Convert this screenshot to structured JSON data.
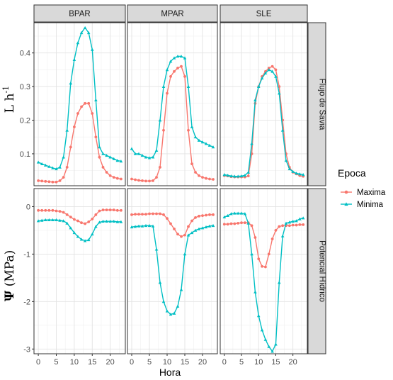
{
  "chart_data": {
    "type": "line",
    "facet_cols": [
      "BPAR",
      "MPAR",
      "SLE"
    ],
    "facet_rows": [
      "Flujo de Savia",
      "Potencial Hídrico"
    ],
    "xlabel": "Hora",
    "ylabel_top": {
      "main": "L h",
      "sup": "-1"
    },
    "ylabel_bottom": {
      "symbol": "Ψ",
      "rest": " (MPa)"
    },
    "x_ticks": [
      0,
      5,
      10,
      15,
      20
    ],
    "xlim": [
      -1.2,
      24.2
    ],
    "row_limits": [
      [
        0.005,
        0.49
      ],
      [
        -3.1,
        0.38
      ]
    ],
    "row_ticks": [
      [
        0.1,
        0.2,
        0.3,
        0.4
      ],
      [
        0,
        -1,
        -2,
        -3
      ]
    ],
    "legend_title": "Epoca",
    "series": [
      {
        "name": "Maxima",
        "color": "#F8766D",
        "marker": "circle"
      },
      {
        "name": "Minima",
        "color": "#00BFC4",
        "marker": "triangle"
      }
    ],
    "x": [
      0,
      1,
      2,
      3,
      4,
      5,
      6,
      7,
      8,
      9,
      10,
      11,
      12,
      13,
      14,
      15,
      16,
      17,
      18,
      19,
      20,
      21,
      22,
      23
    ],
    "panels": [
      {
        "row": 0,
        "col": 0,
        "Maxima": [
          0.02,
          0.019,
          0.018,
          0.017,
          0.016,
          0.016,
          0.02,
          0.03,
          0.06,
          0.12,
          0.18,
          0.22,
          0.24,
          0.25,
          0.25,
          0.22,
          0.15,
          0.09,
          0.06,
          0.045,
          0.035,
          0.03,
          0.027,
          0.025
        ],
        "Minima": [
          0.075,
          0.07,
          0.066,
          0.062,
          0.058,
          0.055,
          0.06,
          0.09,
          0.17,
          0.31,
          0.38,
          0.43,
          0.46,
          0.475,
          0.46,
          0.41,
          0.26,
          0.12,
          0.1,
          0.095,
          0.09,
          0.085,
          0.08,
          0.078
        ]
      },
      {
        "row": 0,
        "col": 1,
        "Maxima": [
          0.025,
          0.023,
          0.021,
          0.02,
          0.019,
          0.019,
          0.02,
          0.03,
          0.06,
          0.17,
          0.28,
          0.33,
          0.345,
          0.355,
          0.36,
          0.33,
          0.17,
          0.07,
          0.045,
          0.035,
          0.03,
          0.027,
          0.025,
          0.024
        ],
        "Minima": [
          0.115,
          0.1,
          0.1,
          0.095,
          0.09,
          0.088,
          0.09,
          0.11,
          0.2,
          0.3,
          0.35,
          0.375,
          0.385,
          0.39,
          0.39,
          0.385,
          0.3,
          0.18,
          0.15,
          0.14,
          0.135,
          0.13,
          0.125,
          0.12
        ]
      },
      {
        "row": 0,
        "col": 2,
        "Maxima": [
          0.035,
          0.034,
          0.032,
          0.031,
          0.031,
          0.031,
          0.031,
          0.034,
          0.1,
          0.25,
          0.3,
          0.33,
          0.345,
          0.355,
          0.36,
          0.35,
          0.3,
          0.2,
          0.1,
          0.06,
          0.045,
          0.04,
          0.035,
          0.033
        ],
        "Minima": [
          0.038,
          0.036,
          0.034,
          0.033,
          0.033,
          0.034,
          0.036,
          0.045,
          0.13,
          0.26,
          0.3,
          0.325,
          0.34,
          0.35,
          0.345,
          0.33,
          0.28,
          0.17,
          0.08,
          0.055,
          0.047,
          0.042,
          0.04,
          0.038
        ]
      },
      {
        "row": 1,
        "col": 0,
        "Maxima": [
          -0.08,
          -0.08,
          -0.08,
          -0.08,
          -0.08,
          -0.09,
          -0.1,
          -0.12,
          -0.17,
          -0.22,
          -0.27,
          -0.3,
          -0.34,
          -0.36,
          -0.32,
          -0.26,
          -0.17,
          -0.09,
          -0.07,
          -0.07,
          -0.07,
          -0.07,
          -0.08,
          -0.08
        ],
        "Minima": [
          -0.3,
          -0.29,
          -0.28,
          -0.28,
          -0.28,
          -0.28,
          -0.29,
          -0.3,
          -0.35,
          -0.45,
          -0.55,
          -0.63,
          -0.69,
          -0.72,
          -0.7,
          -0.58,
          -0.42,
          -0.33,
          -0.31,
          -0.31,
          -0.31,
          -0.31,
          -0.32,
          -0.32
        ]
      },
      {
        "row": 1,
        "col": 1,
        "Maxima": [
          -0.17,
          -0.16,
          -0.16,
          -0.16,
          -0.16,
          -0.15,
          -0.15,
          -0.15,
          -0.15,
          -0.17,
          -0.25,
          -0.36,
          -0.47,
          -0.58,
          -0.63,
          -0.6,
          -0.42,
          -0.3,
          -0.23,
          -0.2,
          -0.19,
          -0.18,
          -0.17,
          -0.17
        ],
        "Minima": [
          -0.43,
          -0.42,
          -0.41,
          -0.41,
          -0.4,
          -0.4,
          -0.41,
          -0.9,
          -1.6,
          -2.0,
          -2.2,
          -2.27,
          -2.25,
          -2.1,
          -1.75,
          -1.0,
          -0.6,
          -0.55,
          -0.5,
          -0.47,
          -0.45,
          -0.43,
          -0.41,
          -0.4
        ]
      },
      {
        "row": 1,
        "col": 2,
        "Maxima": [
          -0.37,
          -0.37,
          -0.36,
          -0.36,
          -0.35,
          -0.34,
          -0.34,
          -0.34,
          -0.4,
          -0.65,
          -1.1,
          -1.26,
          -1.27,
          -1.0,
          -0.68,
          -0.5,
          -0.42,
          -0.4,
          -0.4,
          -0.4,
          -0.39,
          -0.39,
          -0.38,
          -0.38
        ],
        "Minima": [
          -0.22,
          -0.19,
          -0.15,
          -0.14,
          -0.14,
          -0.14,
          -0.15,
          -0.35,
          -1.0,
          -1.8,
          -2.3,
          -2.6,
          -2.8,
          -2.95,
          -3.05,
          -2.9,
          -1.6,
          -0.62,
          -0.35,
          -0.33,
          -0.31,
          -0.3,
          -0.26,
          -0.24
        ]
      }
    ]
  }
}
